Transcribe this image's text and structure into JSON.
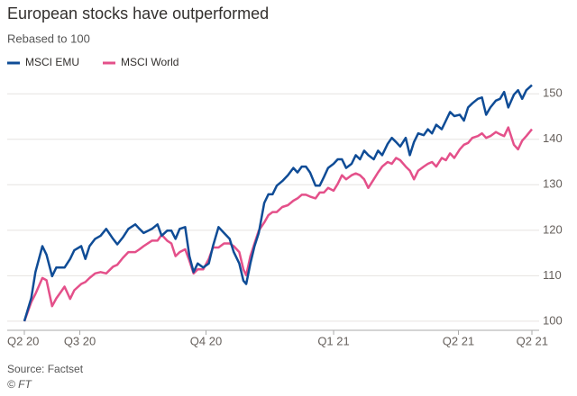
{
  "chart_data": {
    "type": "line",
    "title": "European stocks have outperformed",
    "subtitle": "Rebased to 100",
    "source": "Source: Factset",
    "credit": "© FT",
    "x": [
      0,
      5,
      8,
      13,
      16,
      20,
      23,
      26,
      29,
      33,
      36,
      41,
      44,
      47,
      51,
      55,
      59,
      64,
      67,
      71,
      75,
      80,
      83,
      86,
      92,
      96,
      99,
      103,
      106,
      109,
      112,
      116,
      119,
      122,
      125,
      129,
      133,
      136,
      140,
      144,
      148,
      151,
      155,
      158,
      160,
      163,
      166,
      169,
      173,
      176,
      179,
      182,
      186,
      190,
      194,
      197,
      200,
      203,
      206,
      210,
      213,
      216,
      219,
      223,
      226,
      229,
      232,
      236,
      239,
      242,
      245,
      248,
      252,
      255,
      258,
      262,
      265,
      268,
      271,
      275,
      278,
      281,
      284,
      288,
      291,
      294,
      297,
      301,
      304,
      307,
      310,
      314,
      317,
      320,
      323,
      327,
      330,
      333,
      336,
      340,
      343,
      346,
      349,
      353,
      356,
      359,
      362,
      366
    ],
    "series": [
      {
        "name": "MSCI EMU",
        "color": "#0f4c96",
        "values": [
          100,
          105.1,
          110.8,
          116.5,
          114.6,
          109.9,
          111.8,
          111.8,
          111.8,
          113.7,
          115.6,
          116.5,
          113.7,
          116.5,
          118.1,
          118.8,
          120.3,
          118.1,
          116.9,
          118.4,
          120.3,
          121.3,
          120.3,
          119.4,
          120.3,
          121.3,
          118.8,
          119.9,
          119.9,
          118.1,
          120.3,
          120.7,
          114.3,
          110.8,
          112.7,
          111.8,
          112.7,
          116.5,
          120.7,
          119.4,
          118.1,
          115.2,
          112.7,
          108.9,
          108.2,
          112.7,
          116.5,
          119.4,
          126.0,
          127.9,
          127.9,
          129.8,
          130.8,
          132.1,
          133.7,
          132.7,
          134.0,
          134.0,
          132.7,
          129.8,
          129.8,
          131.7,
          133.7,
          134.6,
          135.6,
          135.6,
          133.7,
          134.6,
          136.5,
          135.6,
          137.5,
          136.5,
          135.6,
          137.5,
          136.5,
          139.0,
          140.3,
          139.4,
          138.4,
          140.3,
          136.5,
          139.4,
          141.3,
          140.9,
          142.2,
          141.3,
          143.2,
          142.2,
          144.1,
          146.0,
          145.1,
          145.4,
          144.1,
          147.0,
          147.9,
          148.9,
          149.2,
          145.4,
          147.0,
          148.5,
          148.9,
          150.4,
          147.0,
          149.8,
          150.8,
          148.9,
          150.8,
          151.9
        ]
      },
      {
        "name": "MSCI World",
        "color": "#e4508a",
        "values": [
          100,
          104.2,
          106,
          109.5,
          109,
          103.3,
          105,
          106.3,
          107.6,
          104.9,
          106.8,
          108.2,
          108.6,
          109.5,
          110.5,
          110.8,
          110.5,
          112.0,
          112.4,
          113.9,
          115.2,
          115.2,
          115.8,
          116.5,
          117.7,
          117.7,
          119.0,
          117.7,
          117.1,
          114.3,
          115.2,
          115.8,
          113.3,
          110.5,
          111.4,
          111.4,
          113.7,
          116.2,
          116.2,
          117.1,
          117.1,
          116.5,
          115.2,
          111.4,
          110.1,
          114.3,
          117.1,
          119.9,
          121.7,
          123.3,
          124.0,
          124.0,
          125.1,
          125.5,
          126.5,
          127.0,
          127.8,
          127.8,
          127.4,
          127.0,
          128.3,
          128.3,
          129.3,
          128.7,
          130.2,
          132.1,
          131.2,
          132.1,
          132.5,
          132.1,
          131.2,
          129.3,
          131.2,
          132.7,
          134.0,
          135.0,
          134.6,
          135.9,
          135.4,
          134.0,
          133.1,
          131.2,
          133.1,
          134.0,
          134.6,
          135.0,
          134.0,
          135.9,
          135.4,
          136.9,
          135.9,
          137.8,
          138.8,
          139.2,
          140.3,
          140.7,
          141.3,
          140.3,
          140.7,
          141.6,
          141.1,
          140.7,
          142.6,
          138.8,
          137.8,
          139.7,
          140.7,
          142.2
        ]
      }
    ],
    "xlim": [
      0,
      366
    ],
    "xticks": [
      {
        "value": 0,
        "label": "Q2 20"
      },
      {
        "value": 40,
        "label": "Q3 20"
      },
      {
        "value": 131,
        "label": "Q4 20"
      },
      {
        "value": 223,
        "label": "Q1 21"
      },
      {
        "value": 313,
        "label": "Q2 21"
      },
      {
        "value": 366,
        "label": "Q2 21"
      }
    ],
    "ylim": [
      98,
      154
    ],
    "yticks": [
      100,
      110,
      120,
      130,
      140,
      150
    ],
    "grid": true
  }
}
